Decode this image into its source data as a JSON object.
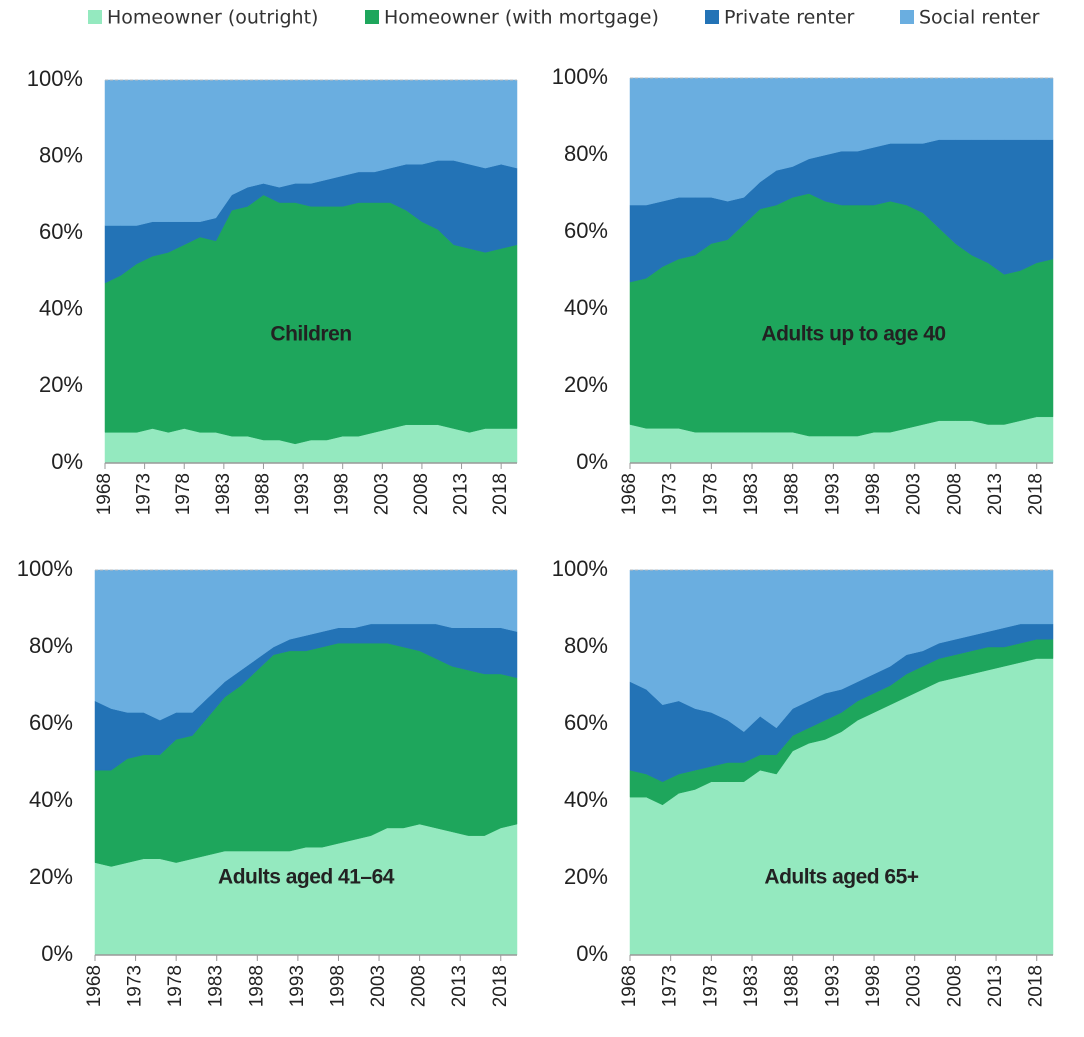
{
  "chart_data": [
    {
      "type": "area",
      "title": "Children",
      "x": [
        1968,
        1970,
        1972,
        1974,
        1976,
        1978,
        1980,
        1982,
        1984,
        1986,
        1988,
        1990,
        1992,
        1994,
        1996,
        1998,
        2000,
        2002,
        2004,
        2006,
        2008,
        2010,
        2012,
        2014,
        2016,
        2018,
        2020
      ],
      "xlim": [
        1968,
        2020
      ],
      "xticks": [
        1968,
        1973,
        1978,
        1983,
        1988,
        1993,
        1998,
        2003,
        2008,
        2013,
        2018
      ],
      "ylim": [
        0,
        100
      ],
      "yticks": [
        {
          "value": 0,
          "label": "0%"
        },
        {
          "value": 20,
          "label": "20%"
        },
        {
          "value": 40,
          "label": "40%"
        },
        {
          "value": 60,
          "label": "60%"
        },
        {
          "value": 80,
          "label": "80%"
        },
        {
          "value": 100,
          "label": "100%"
        }
      ],
      "series": [
        {
          "name": "Homeowner (outright)",
          "color": "#94e9bf",
          "values": [
            8,
            8,
            8,
            9,
            8,
            9,
            8,
            8,
            7,
            7,
            6,
            6,
            5,
            6,
            6,
            7,
            7,
            8,
            9,
            10,
            10,
            10,
            9,
            8,
            9,
            9,
            9
          ]
        },
        {
          "name": "Homeowner (with mortgage)",
          "color": "#1ea65c",
          "values": [
            39,
            41,
            44,
            45,
            47,
            48,
            51,
            50,
            59,
            60,
            64,
            62,
            63,
            61,
            61,
            60,
            61,
            60,
            59,
            56,
            53,
            51,
            48,
            48,
            46,
            47,
            48
          ]
        },
        {
          "name": "Private renter",
          "color": "#2373b6",
          "values": [
            15,
            13,
            10,
            9,
            8,
            6,
            4,
            6,
            4,
            5,
            3,
            4,
            5,
            6,
            7,
            8,
            8,
            8,
            9,
            12,
            15,
            18,
            22,
            22,
            22,
            22,
            20
          ]
        },
        {
          "name": "Social renter",
          "color": "#6aaee0",
          "values": [
            38,
            38,
            38,
            37,
            37,
            37,
            37,
            36,
            30,
            28,
            27,
            28,
            27,
            27,
            26,
            25,
            24,
            24,
            23,
            22,
            22,
            21,
            21,
            22,
            23,
            22,
            23
          ]
        }
      ]
    },
    {
      "type": "area",
      "title": "Adults up to age 40",
      "x": [
        1968,
        1970,
        1972,
        1974,
        1976,
        1978,
        1980,
        1982,
        1984,
        1986,
        1988,
        1990,
        1992,
        1994,
        1996,
        1998,
        2000,
        2002,
        2004,
        2006,
        2008,
        2010,
        2012,
        2014,
        2016,
        2018,
        2020
      ],
      "xlim": [
        1968,
        2020
      ],
      "xticks": [
        1968,
        1973,
        1978,
        1983,
        1988,
        1993,
        1998,
        2003,
        2008,
        2013,
        2018
      ],
      "ylim": [
        0,
        100
      ],
      "yticks": [
        {
          "value": 0,
          "label": "0%"
        },
        {
          "value": 20,
          "label": "20%"
        },
        {
          "value": 40,
          "label": "40%"
        },
        {
          "value": 60,
          "label": "60%"
        },
        {
          "value": 80,
          "label": "80%"
        },
        {
          "value": 100,
          "label": "100%"
        }
      ],
      "series": [
        {
          "values": [
            10,
            9,
            9,
            9,
            8,
            8,
            8,
            8,
            8,
            8,
            8,
            7,
            7,
            7,
            7,
            8,
            8,
            9,
            10,
            11,
            11,
            11,
            10,
            10,
            11,
            12,
            12
          ]
        },
        {
          "values": [
            37,
            39,
            42,
            44,
            46,
            49,
            50,
            54,
            58,
            59,
            61,
            63,
            61,
            60,
            60,
            59,
            60,
            58,
            55,
            50,
            46,
            43,
            42,
            39,
            39,
            40,
            41
          ]
        },
        {
          "values": [
            20,
            19,
            17,
            16,
            15,
            12,
            10,
            7,
            7,
            9,
            8,
            9,
            12,
            14,
            14,
            15,
            15,
            16,
            18,
            23,
            27,
            30,
            32,
            35,
            34,
            32,
            31
          ]
        },
        {
          "values": [
            33,
            33,
            32,
            31,
            31,
            31,
            32,
            31,
            27,
            24,
            23,
            21,
            20,
            19,
            19,
            18,
            17,
            17,
            17,
            16,
            16,
            16,
            16,
            16,
            16,
            16,
            16
          ]
        }
      ]
    },
    {
      "type": "area",
      "title": "Adults aged 41–64",
      "x": [
        1968,
        1970,
        1972,
        1974,
        1976,
        1978,
        1980,
        1982,
        1984,
        1986,
        1988,
        1990,
        1992,
        1994,
        1996,
        1998,
        2000,
        2002,
        2004,
        2006,
        2008,
        2010,
        2012,
        2014,
        2016,
        2018,
        2020
      ],
      "xlim": [
        1968,
        2020
      ],
      "xticks": [
        1968,
        1973,
        1978,
        1983,
        1988,
        1993,
        1998,
        2003,
        2008,
        2013,
        2018
      ],
      "ylim": [
        0,
        100
      ],
      "yticks": [
        {
          "value": 0,
          "label": "0%"
        },
        {
          "value": 20,
          "label": "20%"
        },
        {
          "value": 40,
          "label": "40%"
        },
        {
          "value": 60,
          "label": "60%"
        },
        {
          "value": 80,
          "label": "80%"
        },
        {
          "value": 100,
          "label": "100%"
        }
      ],
      "series": [
        {
          "values": [
            24,
            23,
            24,
            25,
            25,
            24,
            25,
            26,
            27,
            27,
            27,
            27,
            27,
            28,
            28,
            29,
            30,
            31,
            33,
            33,
            34,
            33,
            32,
            31,
            31,
            33,
            34
          ]
        },
        {
          "values": [
            24,
            25,
            27,
            27,
            27,
            32,
            32,
            36,
            40,
            43,
            47,
            51,
            52,
            51,
            52,
            52,
            51,
            50,
            48,
            47,
            45,
            44,
            43,
            43,
            42,
            40,
            38
          ]
        },
        {
          "values": [
            18,
            16,
            12,
            11,
            9,
            7,
            6,
            5,
            4,
            4,
            3,
            2,
            3,
            4,
            4,
            4,
            4,
            5,
            5,
            6,
            7,
            9,
            10,
            11,
            12,
            12,
            12
          ]
        },
        {
          "values": [
            34,
            36,
            37,
            37,
            39,
            37,
            37,
            33,
            29,
            26,
            23,
            20,
            18,
            17,
            16,
            15,
            15,
            14,
            14,
            14,
            14,
            14,
            15,
            15,
            15,
            15,
            16
          ]
        }
      ]
    },
    {
      "type": "area",
      "title": "Adults aged 65+",
      "x": [
        1968,
        1970,
        1972,
        1974,
        1976,
        1978,
        1980,
        1982,
        1984,
        1986,
        1988,
        1990,
        1992,
        1994,
        1996,
        1998,
        2000,
        2002,
        2004,
        2006,
        2008,
        2010,
        2012,
        2014,
        2016,
        2018,
        2020
      ],
      "xlim": [
        1968,
        2020
      ],
      "xticks": [
        1968,
        1973,
        1978,
        1983,
        1988,
        1993,
        1998,
        2003,
        2008,
        2013,
        2018
      ],
      "ylim": [
        0,
        100
      ],
      "yticks": [
        {
          "value": 0,
          "label": "0%"
        },
        {
          "value": 20,
          "label": "20%"
        },
        {
          "value": 40,
          "label": "40%"
        },
        {
          "value": 60,
          "label": "60%"
        },
        {
          "value": 80,
          "label": "80%"
        },
        {
          "value": 100,
          "label": "100%"
        }
      ],
      "series": [
        {
          "values": [
            41,
            41,
            39,
            42,
            43,
            45,
            45,
            45,
            48,
            47,
            53,
            55,
            56,
            58,
            61,
            63,
            65,
            67,
            69,
            71,
            72,
            73,
            74,
            75,
            76,
            77,
            77
          ]
        },
        {
          "values": [
            7,
            6,
            6,
            5,
            5,
            4,
            5,
            5,
            4,
            5,
            4,
            4,
            5,
            5,
            5,
            5,
            5,
            6,
            6,
            6,
            6,
            6,
            6,
            5,
            5,
            5,
            5
          ]
        },
        {
          "values": [
            23,
            22,
            20,
            19,
            16,
            14,
            11,
            8,
            10,
            7,
            7,
            7,
            7,
            6,
            5,
            5,
            5,
            5,
            4,
            4,
            4,
            4,
            4,
            5,
            5,
            4,
            4
          ]
        },
        {
          "values": [
            29,
            31,
            35,
            34,
            36,
            37,
            39,
            42,
            38,
            41,
            36,
            34,
            32,
            31,
            29,
            27,
            25,
            22,
            21,
            19,
            18,
            17,
            16,
            15,
            14,
            14,
            14
          ]
        }
      ]
    }
  ]
}
